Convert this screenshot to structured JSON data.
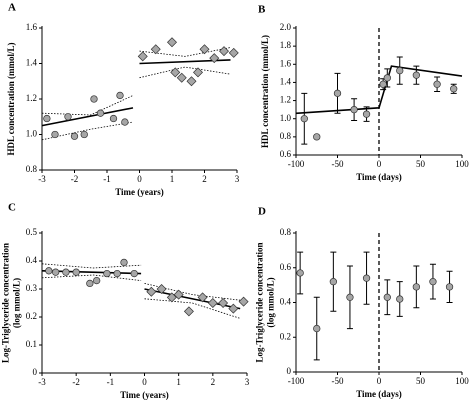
{
  "chart_data": [
    {
      "type": "scatter",
      "label": "A",
      "xlabel": "Time (years)",
      "ylabel": [
        "HDL concentration (mmol/L)"
      ],
      "xlim": [
        -3,
        3
      ],
      "ylim": [
        0.8,
        1.6
      ],
      "xticks": [
        -3,
        -2,
        -1,
        0,
        1,
        2,
        3
      ],
      "yticks": [
        0.8,
        {
          "value": 1.0,
          "label": "1.0"
        },
        1.2,
        1.4,
        1.6
      ],
      "series": [
        {
          "kind": "points",
          "marker": "circle",
          "color": "#a6a6a6",
          "x": [
            -2.85,
            -2.6,
            -2.2,
            -2.0,
            -1.7,
            -1.4,
            -1.2,
            -0.8,
            -0.6,
            -0.45
          ],
          "values": [
            1.09,
            1.0,
            1.1,
            0.99,
            1.0,
            1.2,
            1.12,
            1.09,
            1.22,
            1.07
          ]
        },
        {
          "kind": "points",
          "marker": "diamond",
          "color": "#a6a6a6",
          "x": [
            0.1,
            0.5,
            1.0,
            1.1,
            1.3,
            1.6,
            1.8,
            2.0,
            2.3,
            2.6,
            2.9
          ],
          "values": [
            1.44,
            1.48,
            1.52,
            1.35,
            1.32,
            1.3,
            1.35,
            1.48,
            1.43,
            1.47,
            1.46
          ]
        },
        {
          "kind": "line",
          "style": "solid",
          "color": "#000000",
          "x": [
            -3,
            -0.2
          ],
          "values": [
            1.05,
            1.15
          ]
        },
        {
          "kind": "line",
          "style": "solid",
          "color": "#000000",
          "x": [
            0,
            2.8
          ],
          "values": [
            1.4,
            1.42
          ]
        },
        {
          "kind": "line",
          "style": "dotted",
          "color": "#000000",
          "x": [
            -3,
            -1.5,
            -0.2
          ],
          "values": [
            1.12,
            1.11,
            1.22
          ]
        },
        {
          "kind": "line",
          "style": "dotted",
          "color": "#000000",
          "x": [
            -3,
            -1.5,
            -0.2
          ],
          "values": [
            0.97,
            1.03,
            1.07
          ]
        },
        {
          "kind": "line",
          "style": "dotted",
          "color": "#000000",
          "x": [
            0,
            1.4,
            2.8
          ],
          "values": [
            1.47,
            1.44,
            1.49
          ]
        },
        {
          "kind": "line",
          "style": "dotted",
          "color": "#000000",
          "x": [
            0,
            1.4,
            2.8
          ],
          "values": [
            1.32,
            1.38,
            1.34
          ]
        }
      ]
    },
    {
      "type": "scatter",
      "label": "B",
      "xlabel": "Time (days)",
      "ylabel": [
        "HDL concentration (mmol/L)"
      ],
      "xlim": [
        -100,
        100
      ],
      "ylim": [
        0.6,
        2.0
      ],
      "xticks": [
        -100,
        -50,
        0,
        50,
        100
      ],
      "yticks": [
        0.6,
        0.8,
        {
          "value": 1.0,
          "label": "1.0"
        },
        1.2,
        1.4,
        1.6,
        1.8,
        {
          "value": 2.0,
          "label": "2.0"
        }
      ],
      "vline": 0,
      "series": [
        {
          "kind": "points",
          "marker": "circle",
          "color": "#a6a6a6",
          "x": [
            -90,
            -75,
            -50,
            -30,
            -15,
            5,
            10,
            25,
            45,
            70,
            90
          ],
          "values": [
            1.0,
            0.8,
            1.28,
            1.1,
            1.05,
            1.38,
            1.45,
            1.53,
            1.48,
            1.38,
            1.33
          ],
          "errors": [
            0.28,
            null,
            0.22,
            0.12,
            0.08,
            0.06,
            0.1,
            0.15,
            0.1,
            0.08,
            0.05
          ]
        },
        {
          "kind": "line",
          "style": "solid",
          "color": "#000000",
          "x": [
            -100,
            0,
            15,
            100
          ],
          "values": [
            1.06,
            1.12,
            1.58,
            1.47
          ]
        }
      ]
    },
    {
      "type": "scatter",
      "label": "C",
      "xlabel": "Time (years)",
      "ylabel": [
        "Log-Triglyceride concentration",
        "(log mmol/L)"
      ],
      "xlim": [
        -3,
        3
      ],
      "ylim": [
        0,
        0.5
      ],
      "xticks": [
        -3,
        -2,
        -1,
        0,
        1,
        2,
        3
      ],
      "yticks": [
        0,
        0.1,
        0.2,
        0.3,
        0.4,
        0.5
      ],
      "series": [
        {
          "kind": "points",
          "marker": "circle",
          "color": "#a6a6a6",
          "x": [
            -2.8,
            -2.6,
            -2.3,
            -2.0,
            -1.6,
            -1.4,
            -1.1,
            -0.8,
            -0.6,
            -0.3
          ],
          "values": [
            0.365,
            0.36,
            0.36,
            0.36,
            0.32,
            0.33,
            0.355,
            0.355,
            0.395,
            0.355
          ]
        },
        {
          "kind": "points",
          "marker": "diamond",
          "color": "#a6a6a6",
          "x": [
            0.2,
            0.5,
            0.8,
            1.0,
            1.3,
            1.7,
            2.0,
            2.3,
            2.6,
            2.9
          ],
          "values": [
            0.29,
            0.3,
            0.27,
            0.28,
            0.22,
            0.27,
            0.25,
            0.25,
            0.23,
            0.255
          ]
        },
        {
          "kind": "line",
          "style": "solid",
          "color": "#000000",
          "x": [
            -3,
            -0.1
          ],
          "values": [
            0.365,
            0.355
          ]
        },
        {
          "kind": "line",
          "style": "solid",
          "color": "#000000",
          "x": [
            0,
            2.8
          ],
          "values": [
            0.3,
            0.23
          ]
        },
        {
          "kind": "line",
          "style": "dotted",
          "color": "#000000",
          "x": [
            -3,
            -1.5,
            -0.1
          ],
          "values": [
            0.39,
            0.375,
            0.385
          ]
        },
        {
          "kind": "line",
          "style": "dotted",
          "color": "#000000",
          "x": [
            -3,
            -1.5,
            -0.1
          ],
          "values": [
            0.34,
            0.35,
            0.33
          ]
        },
        {
          "kind": "line",
          "style": "dotted",
          "color": "#000000",
          "x": [
            0,
            1.4,
            2.8
          ],
          "values": [
            0.32,
            0.28,
            0.26
          ]
        },
        {
          "kind": "line",
          "style": "dotted",
          "color": "#000000",
          "x": [
            0,
            1.4,
            2.8
          ],
          "values": [
            0.265,
            0.25,
            0.195
          ]
        }
      ]
    },
    {
      "type": "scatter",
      "label": "D",
      "xlabel": "Time (days)",
      "ylabel": [
        "Log-Triglyceride concentration",
        "(log mmol/L)"
      ],
      "xlim": [
        -100,
        100
      ],
      "ylim": [
        0,
        0.8
      ],
      "xticks": [
        -100,
        -50,
        0,
        50,
        100
      ],
      "yticks": [
        0,
        0.2,
        0.4,
        0.6,
        0.8
      ],
      "vline": 0,
      "series": [
        {
          "kind": "points",
          "marker": "circle",
          "color": "#a6a6a6",
          "x": [
            -95,
            -75,
            -55,
            -35,
            -15,
            10,
            25,
            45,
            65,
            85
          ],
          "values": [
            0.57,
            0.25,
            0.52,
            0.43,
            0.54,
            0.43,
            0.42,
            0.49,
            0.52,
            0.49
          ],
          "errors": [
            0.12,
            0.18,
            0.17,
            0.18,
            0.15,
            0.1,
            0.1,
            0.12,
            0.1,
            0.09
          ]
        }
      ]
    }
  ]
}
